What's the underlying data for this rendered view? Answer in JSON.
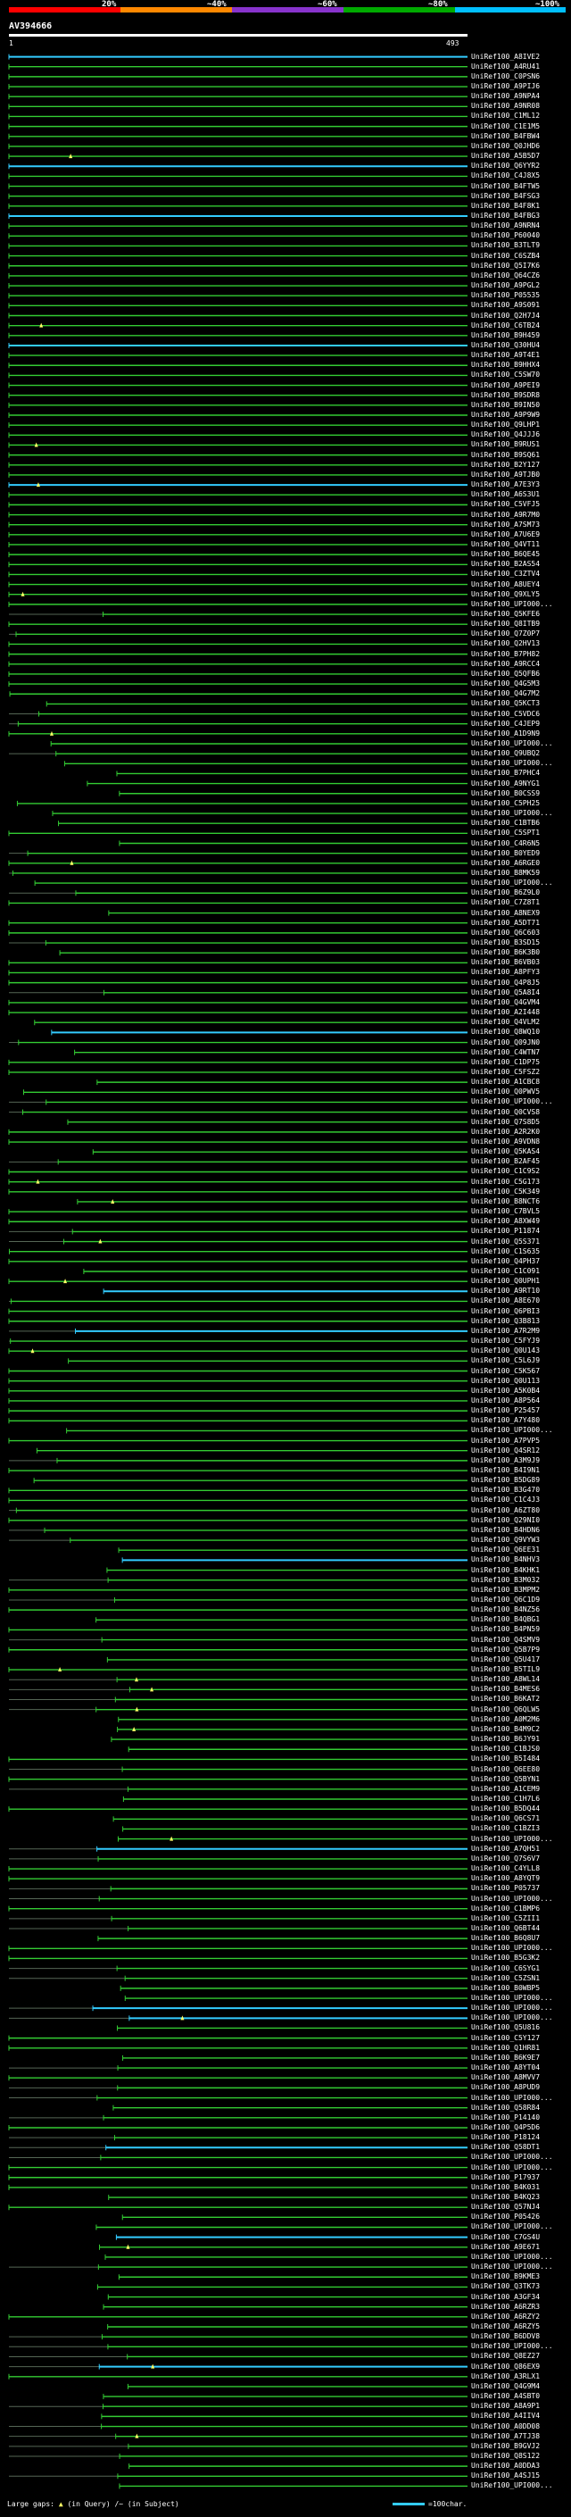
{
  "query": {
    "name": "AV394666",
    "start": "1",
    "end": "493"
  },
  "scale": {
    "labels": [
      "20%",
      "~40%",
      "~60%",
      "~80%",
      "~100%"
    ],
    "colors": [
      "#ff0000",
      "#ff8800",
      "#8833cc",
      "#00aa00",
      "#00bfff"
    ]
  },
  "legend": {
    "large_gaps": "Large gaps:",
    "in_query": "(in Query)",
    "in_subject": "/~ (in Subject)",
    "scale_text": "=100char."
  },
  "colors": {
    "green": "#33cc33",
    "blue": "#33ccff",
    "gap": "#556655",
    "marker": "#ffff66"
  },
  "chart_data": {
    "type": "alignment",
    "query_length": 493,
    "hits": [
      "UniRef100_A8IVE2",
      "UniRef100_A4RU41",
      "UniRef100_C0PSN6",
      "UniRef100_A9PIJ6",
      "UniRef100_A9NPA4",
      "UniRef100_A9NR08",
      "UniRef100_C1ML12",
      "UniRef100_C1E1M5",
      "UniRef100_B4FBW4",
      "UniRef100_Q0JHD6",
      "UniRef100_A5B5D7",
      "UniRef100_Q6YYR2",
      "UniRef100_C4J8X5",
      "UniRef100_B4FTW5",
      "UniRef100_B4FSG3",
      "UniRef100_B4F8K1",
      "UniRef100_B4FBG3",
      "UniRef100_A9NRN4",
      "UniRef100_P60040",
      "UniRef100_B3TLT9",
      "UniRef100_C6SZB4",
      "UniRef100_Q5I7K6",
      "UniRef100_Q64CZ6",
      "UniRef100_A9PGL2",
      "UniRef100_P05535",
      "UniRef100_A9S091",
      "UniRef100_Q2H7J4",
      "UniRef100_C6TB24",
      "UniRef100_B9H459",
      "UniRef100_Q30HU4",
      "UniRef100_A9T4E1",
      "UniRef100_B9HHX4",
      "UniRef100_C5SW70",
      "UniRef100_A9PEI9",
      "UniRef100_B9SDR8",
      "UniRef100_B9IN50",
      "UniRef100_A9P9W9",
      "UniRef100_Q9LHP1",
      "UniRef100_Q4JJJ6",
      "UniRef100_B9RUS1",
      "UniRef100_B9SQ61",
      "UniRef100_B2Y127",
      "UniRef100_A9TJB0",
      "UniRef100_A7E3Y3",
      "UniRef100_A6S3U1",
      "UniRef100_C5VFJ5",
      "UniRef100_A9R7M0",
      "UniRef100_A7SM73",
      "UniRef100_A7U6E9",
      "UniRef100_Q4VT11",
      "UniRef100_B6QE45",
      "UniRef100_B2AS54",
      "UniRef100_C3ZTV4",
      "UniRef100_A8UEY4",
      "UniRef100_Q9XLY5",
      "UniRef100_UPI000...",
      "UniRef100_Q5KFE6",
      "UniRef100_Q8ITB9",
      "UniRef100_Q7Z0P7",
      "UniRef100_Q2HV13",
      "UniRef100_B7PH82",
      "UniRef100_A9RCC4",
      "UniRef100_Q5QFB6",
      "UniRef100_Q4G5M3",
      "UniRef100_Q4G7M2",
      "UniRef100_Q5KCT3",
      "UniRef100_C5VDC6",
      "UniRef100_C4JEP9",
      "UniRef100_A1D9N9",
      "UniRef100_UPI000...",
      "UniRef100_Q9UBQ2",
      "UniRef100_UPI000...",
      "UniRef100_B7PHC4",
      "UniRef100_A9NYG1",
      "UniRef100_B0CSS9",
      "UniRef100_C5PH25",
      "UniRef100_UPI000...",
      "UniRef100_C1BTB6",
      "UniRef100_C5SPT1",
      "UniRef100_C4R6N5",
      "UniRef100_B0YED9",
      "UniRef100_A6RGE0",
      "UniRef100_B8MK59",
      "UniRef100_UPI000...",
      "UniRef100_B6Z9L0",
      "UniRef100_C7Z8T1",
      "UniRef100_A8NEX9",
      "UniRef100_A5DT71",
      "UniRef100_Q6C603",
      "UniRef100_B3SD15",
      "UniRef100_B6K3B0",
      "UniRef100_B6VB03",
      "UniRef100_A8PFY3",
      "UniRef100_Q4P8J5",
      "UniRef100_Q5A8I4",
      "UniRef100_Q4GVM4",
      "UniRef100_A2I448",
      "UniRef100_Q4VLM2",
      "UniRef100_Q8WQ10",
      "UniRef100_Q09JN0",
      "UniRef100_C4WTN7",
      "UniRef100_C1DP75",
      "UniRef100_C5FSZ2",
      "UniRef100_A1CBC8",
      "UniRef100_Q0PWV5",
      "UniRef100_UPI000...",
      "UniRef100_Q0CVS8",
      "UniRef100_Q7S8D5",
      "UniRef100_A2R2K0",
      "UniRef100_A9VDN8",
      "UniRef100_Q5KAS4",
      "UniRef100_B2AF45",
      "UniRef100_C1C9S2",
      "UniRef100_C5G173",
      "UniRef100_C5K349",
      "UniRef100_B8NCT6",
      "UniRef100_C7BVL5",
      "UniRef100_A8XW49",
      "UniRef100_P11874",
      "UniRef100_Q5S371",
      "UniRef100_C1S635",
      "UniRef100_Q4PH37",
      "UniRef100_C1C091",
      "UniRef100_Q0UPH1",
      "UniRef100_A9RT10",
      "UniRef100_A8E670",
      "UniRef100_Q6PBI3",
      "UniRef100_Q3B813",
      "UniRef100_A7R2M9",
      "UniRef100_C5FYJ9",
      "UniRef100_Q0U143",
      "UniRef100_C5L6J9",
      "UniRef100_C5K567",
      "UniRef100_Q0U113",
      "UniRef100_A5K0B4",
      "UniRef100_A8P564",
      "UniRef100_P25457",
      "UniRef100_A7Y480",
      "UniRef100_UPI000...",
      "UniRef100_A7PVP5",
      "UniRef100_Q4SR12",
      "UniRef100_A3M9J9",
      "UniRef100_B4I9N1",
      "UniRef100_B5DG89",
      "UniRef100_B3G470",
      "UniRef100_C1C4J3",
      "UniRef100_A6ZT80",
      "UniRef100_Q29NI0",
      "UniRef100_B4HDN6",
      "UniRef100_Q9VYW3",
      "UniRef100_Q6EE31",
      "UniRef100_B4NHV3",
      "UniRef100_B4KHK1",
      "UniRef100_B3M032",
      "UniRef100_B3MPM2",
      "UniRef100_Q6C1D9",
      "UniRef100_B4NZ56",
      "UniRef100_B4QBG1",
      "UniRef100_B4PN59",
      "UniRef100_Q4SMV9",
      "UniRef100_Q5B7P9",
      "UniRef100_Q5U417",
      "UniRef100_B5TIL9",
      "UniRef100_A8WL14",
      "UniRef100_B4MES6",
      "UniRef100_B6KAT2",
      "UniRef100_Q6QLW5",
      "UniRef100_A0M2M6",
      "UniRef100_B4M9C2",
      "UniRef100_B6JY91",
      "UniRef100_C1BJS0",
      "UniRef100_B5I484",
      "UniRef100_Q6EE80",
      "UniRef100_Q5BYN1",
      "UniRef100_A1CEM9",
      "UniRef100_C1H7L6",
      "UniRef100_B5DQ44",
      "UniRef100_Q6CS71",
      "UniRef100_C1BZI3",
      "UniRef100_UPI000...",
      "UniRef100_A7QH51",
      "UniRef100_Q7S6V7",
      "UniRef100_C4YLL8",
      "UniRef100_A8YQT9",
      "UniRef100_P05737",
      "UniRef100_UPI000...",
      "UniRef100_C1BMP6",
      "UniRef100_C5ZII1",
      "UniRef100_Q6BT44",
      "UniRef100_B6Q8U7",
      "UniRef100_UPI000...",
      "UniRef100_B5G3K2",
      "UniRef100_C6SYG1",
      "UniRef100_C5ZSN1",
      "UniRef100_B0WBP5",
      "UniRef100_UPI000...",
      "UniRef100_UPI000...",
      "UniRef100_UPI000...",
      "UniRef100_Q5U816",
      "UniRef100_C5Y127",
      "UniRef100_Q1HR81",
      "UniRef100_B6K9E7",
      "UniRef100_A8YT04",
      "UniRef100_A8MVV7",
      "UniRef100_A8PUD9",
      "UniRef100_UPI000...",
      "UniRef100_Q58R84",
      "UniRef100_P14140",
      "UniRef100_Q4P5D6",
      "UniRef100_P18124",
      "UniRef100_Q58DT1",
      "UniRef100_UPI000...",
      "UniRef100_UPI000...",
      "UniRef100_P17937",
      "UniRef100_B4K031",
      "UniRef100_B4KQ23",
      "UniRef100_Q57NJ4",
      "UniRef100_P05426",
      "UniRef100_UPI000...",
      "UniRef100_C7GS4U",
      "UniRef100_A9E671",
      "UniRef100_UPI000...",
      "UniRef100_UPI000...",
      "UniRef100_B9KME3",
      "UniRef100_Q3TK73",
      "UniRef100_A3GF34",
      "UniRef100_A6RZR3",
      "UniRef100_A6RZY2",
      "UniRef100_A6RZY5",
      "UniRef100_B6DDV8",
      "UniRef100_UPI000...",
      "UniRef100_Q8EZ27",
      "UniRef100_Q86EX9",
      "UniRef100_A3RLX1",
      "UniRef100_Q4G9M4",
      "UniRef100_A4SBT0",
      "UniRef100_A8A9P1",
      "UniRef100_A4IIV4",
      "UniRef100_A0DD08",
      "UniRef100_A7TJ38",
      "UniRef100_B9GVJ2",
      "UniRef100_Q8S122",
      "UniRef100_A0DDA3",
      "UniRef100_A4SJ15",
      "UniRef100_UPI000..."
    ]
  }
}
